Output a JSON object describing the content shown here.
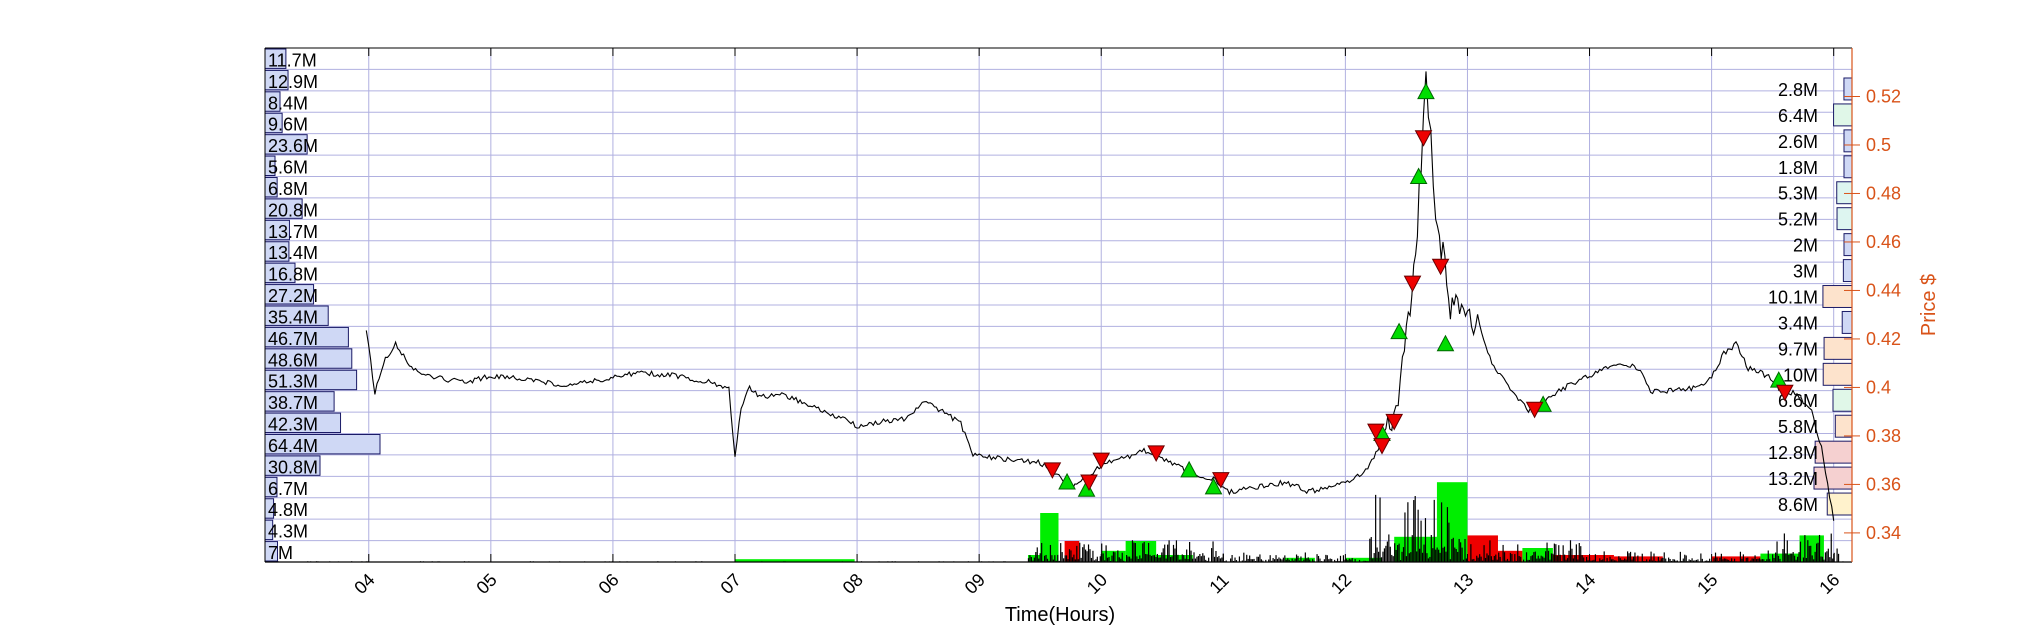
{
  "chart_data": {
    "type": "line",
    "xlabel": "Time(Hours)",
    "ylabel_right": "Price $",
    "x_range_hours": [
      3.15,
      16.15
    ],
    "x_ticks": [
      "04",
      "05",
      "06",
      "07",
      "08",
      "09",
      "10",
      "11",
      "12",
      "13",
      "14",
      "15",
      "16"
    ],
    "y_range": [
      0.328,
      0.54
    ],
    "y_ticks": [
      "0.34",
      "0.36",
      "0.38",
      "0.4",
      "0.42",
      "0.44",
      "0.46",
      "0.48",
      "0.5",
      "0.52"
    ],
    "grid": true,
    "colors": {
      "price_line": "#000000",
      "right_axis": "#d95319",
      "grid": "#b0b0e0",
      "buy_marker": "#00dd00",
      "sell_marker": "#ee0000",
      "volume_up": "#00ee00",
      "volume_down": "#ee0000",
      "volume_profile_left": "#cfd8f5",
      "volume_profile_right": [
        "#cfd8f5",
        "#e0f7e8",
        "#cfd8f5",
        "#cfd8f5",
        "#ddf5f0",
        "#ddf5f0",
        "#cfd8f5",
        "#cfd8f5",
        "#fde3cc",
        "#cfd8f5",
        "#fde3cc",
        "#fde3cc",
        "#e0f7e8",
        "#fde3cc",
        "#f5d0d0",
        "#f5d0d0",
        "#fff2cc"
      ]
    },
    "price_series": [
      [
        3.98,
        0.424
      ],
      [
        4.05,
        0.398
      ],
      [
        4.12,
        0.41
      ],
      [
        4.22,
        0.418
      ],
      [
        4.35,
        0.408
      ],
      [
        4.55,
        0.404
      ],
      [
        4.8,
        0.402
      ],
      [
        5.0,
        0.405
      ],
      [
        5.3,
        0.403
      ],
      [
        5.6,
        0.401
      ],
      [
        5.9,
        0.403
      ],
      [
        6.2,
        0.406
      ],
      [
        6.5,
        0.405
      ],
      [
        6.8,
        0.402
      ],
      [
        6.95,
        0.399
      ],
      [
        7.0,
        0.372
      ],
      [
        7.05,
        0.392
      ],
      [
        7.12,
        0.4
      ],
      [
        7.2,
        0.396
      ],
      [
        7.4,
        0.397
      ],
      [
        7.6,
        0.393
      ],
      [
        7.8,
        0.389
      ],
      [
        8.0,
        0.384
      ],
      [
        8.2,
        0.386
      ],
      [
        8.4,
        0.387
      ],
      [
        8.55,
        0.394
      ],
      [
        8.7,
        0.39
      ],
      [
        8.85,
        0.385
      ],
      [
        8.95,
        0.372
      ],
      [
        9.1,
        0.371
      ],
      [
        9.3,
        0.37
      ],
      [
        9.5,
        0.369
      ],
      [
        9.62,
        0.365
      ],
      [
        9.75,
        0.358
      ],
      [
        9.85,
        0.362
      ],
      [
        10.0,
        0.368
      ],
      [
        10.2,
        0.371
      ],
      [
        10.35,
        0.374
      ],
      [
        10.5,
        0.371
      ],
      [
        10.65,
        0.367
      ],
      [
        10.8,
        0.362
      ],
      [
        10.92,
        0.362
      ],
      [
        11.05,
        0.357
      ],
      [
        11.3,
        0.359
      ],
      [
        11.5,
        0.361
      ],
      [
        11.7,
        0.357
      ],
      [
        11.9,
        0.359
      ],
      [
        12.05,
        0.361
      ],
      [
        12.2,
        0.368
      ],
      [
        12.3,
        0.378
      ],
      [
        12.38,
        0.386
      ],
      [
        12.45,
        0.402
      ],
      [
        12.5,
        0.425
      ],
      [
        12.56,
        0.445
      ],
      [
        12.62,
        0.49
      ],
      [
        12.66,
        0.528
      ],
      [
        12.7,
        0.505
      ],
      [
        12.74,
        0.468
      ],
      [
        12.8,
        0.455
      ],
      [
        12.86,
        0.43
      ],
      [
        12.92,
        0.435
      ],
      [
        13.0,
        0.43
      ],
      [
        13.1,
        0.425
      ],
      [
        13.2,
        0.41
      ],
      [
        13.35,
        0.4
      ],
      [
        13.5,
        0.39
      ],
      [
        13.65,
        0.395
      ],
      [
        13.8,
        0.4
      ],
      [
        14.0,
        0.405
      ],
      [
        14.2,
        0.41
      ],
      [
        14.4,
        0.408
      ],
      [
        14.5,
        0.398
      ],
      [
        14.7,
        0.399
      ],
      [
        14.9,
        0.4
      ],
      [
        15.0,
        0.404
      ],
      [
        15.1,
        0.414
      ],
      [
        15.2,
        0.418
      ],
      [
        15.3,
        0.408
      ],
      [
        15.45,
        0.405
      ],
      [
        15.55,
        0.4
      ],
      [
        15.7,
        0.397
      ],
      [
        15.82,
        0.39
      ],
      [
        15.9,
        0.375
      ],
      [
        16.0,
        0.345
      ]
    ],
    "buy_markers": [
      [
        9.72,
        0.361
      ],
      [
        9.88,
        0.358
      ],
      [
        10.72,
        0.366
      ],
      [
        10.92,
        0.359
      ],
      [
        12.3,
        0.381
      ],
      [
        12.44,
        0.423
      ],
      [
        12.6,
        0.487
      ],
      [
        12.66,
        0.522
      ],
      [
        12.82,
        0.418
      ],
      [
        13.62,
        0.393
      ],
      [
        15.55,
        0.403
      ]
    ],
    "sell_markers": [
      [
        9.6,
        0.366
      ],
      [
        9.9,
        0.361
      ],
      [
        10.0,
        0.37
      ],
      [
        10.45,
        0.373
      ],
      [
        10.98,
        0.362
      ],
      [
        12.25,
        0.382
      ],
      [
        12.3,
        0.376
      ],
      [
        12.4,
        0.386
      ],
      [
        12.55,
        0.443
      ],
      [
        12.64,
        0.503
      ],
      [
        12.78,
        0.45
      ],
      [
        13.55,
        0.391
      ],
      [
        15.6,
        0.398
      ]
    ],
    "volume_blocks": [
      {
        "x0": 7.0,
        "x1": 7.98,
        "h": 0.02,
        "dir": "up"
      },
      {
        "x0": 9.4,
        "x1": 9.55,
        "h": 0.05,
        "dir": "up"
      },
      {
        "x0": 9.5,
        "x1": 9.65,
        "h": 0.35,
        "dir": "up"
      },
      {
        "x0": 9.7,
        "x1": 9.82,
        "h": 0.15,
        "dir": "down"
      },
      {
        "x0": 10.0,
        "x1": 10.2,
        "h": 0.08,
        "dir": "up"
      },
      {
        "x0": 10.2,
        "x1": 10.45,
        "h": 0.15,
        "dir": "up"
      },
      {
        "x0": 10.45,
        "x1": 10.75,
        "h": 0.05,
        "dir": "up"
      },
      {
        "x0": 11.5,
        "x1": 11.75,
        "h": 0.03,
        "dir": "up"
      },
      {
        "x0": 12.0,
        "x1": 12.3,
        "h": 0.03,
        "dir": "up"
      },
      {
        "x0": 12.4,
        "x1": 12.75,
        "h": 0.18,
        "dir": "up"
      },
      {
        "x0": 12.75,
        "x1": 13.0,
        "h": 0.57,
        "dir": "up"
      },
      {
        "x0": 13.0,
        "x1": 13.25,
        "h": 0.19,
        "dir": "down"
      },
      {
        "x0": 13.25,
        "x1": 13.45,
        "h": 0.08,
        "dir": "down"
      },
      {
        "x0": 13.45,
        "x1": 13.7,
        "h": 0.1,
        "dir": "up"
      },
      {
        "x0": 13.7,
        "x1": 14.2,
        "h": 0.05,
        "dir": "down"
      },
      {
        "x0": 14.2,
        "x1": 14.6,
        "h": 0.04,
        "dir": "down"
      },
      {
        "x0": 15.0,
        "x1": 15.4,
        "h": 0.04,
        "dir": "down"
      },
      {
        "x0": 15.4,
        "x1": 15.72,
        "h": 0.06,
        "dir": "up"
      },
      {
        "x0": 15.72,
        "x1": 15.92,
        "h": 0.19,
        "dir": "up"
      }
    ],
    "volume_profile_left": [
      {
        "label": "11.7M",
        "value": 11.7
      },
      {
        "label": "12.9M",
        "value": 12.9
      },
      {
        "label": "8.4M",
        "value": 8.4
      },
      {
        "label": "9.6M",
        "value": 9.6
      },
      {
        "label": "23.6M",
        "value": 23.6
      },
      {
        "label": "5.6M",
        "value": 5.6
      },
      {
        "label": "6.8M",
        "value": 6.8
      },
      {
        "label": "20.8M",
        "value": 20.8
      },
      {
        "label": "13.7M",
        "value": 13.7
      },
      {
        "label": "13.4M",
        "value": 13.4
      },
      {
        "label": "16.8M",
        "value": 16.8
      },
      {
        "label": "27.2M",
        "value": 27.2
      },
      {
        "label": "35.4M",
        "value": 35.4
      },
      {
        "label": "46.7M",
        "value": 46.7
      },
      {
        "label": "48.6M",
        "value": 48.6
      },
      {
        "label": "51.3M",
        "value": 51.3
      },
      {
        "label": "38.7M",
        "value": 38.7
      },
      {
        "label": "42.3M",
        "value": 42.3
      },
      {
        "label": "64.4M",
        "value": 64.4
      },
      {
        "label": "30.8M",
        "value": 30.8
      },
      {
        "label": "6.7M",
        "value": 6.7
      },
      {
        "label": "4.8M",
        "value": 4.8
      },
      {
        "label": "4.3M",
        "value": 4.3
      },
      {
        "label": "7M",
        "value": 7
      }
    ],
    "volume_profile_right": [
      {
        "label": "2.8M",
        "value": 2.8
      },
      {
        "label": "6.4M",
        "value": 6.4
      },
      {
        "label": "2.6M",
        "value": 2.6
      },
      {
        "label": "1.8M",
        "value": 1.8
      },
      {
        "label": "5.3M",
        "value": 5.3
      },
      {
        "label": "5.2M",
        "value": 5.2
      },
      {
        "label": "2M",
        "value": 2
      },
      {
        "label": "3M",
        "value": 3
      },
      {
        "label": "10.1M",
        "value": 10.1
      },
      {
        "label": "3.4M",
        "value": 3.4
      },
      {
        "label": "9.7M",
        "value": 9.7
      },
      {
        "label": "10M",
        "value": 10
      },
      {
        "label": "6.6M",
        "value": 6.6
      },
      {
        "label": "5.8M",
        "value": 5.8
      },
      {
        "label": "12.8M",
        "value": 12.8
      },
      {
        "label": "13.2M",
        "value": 13.2
      },
      {
        "label": "8.6M",
        "value": 8.6
      }
    ]
  }
}
